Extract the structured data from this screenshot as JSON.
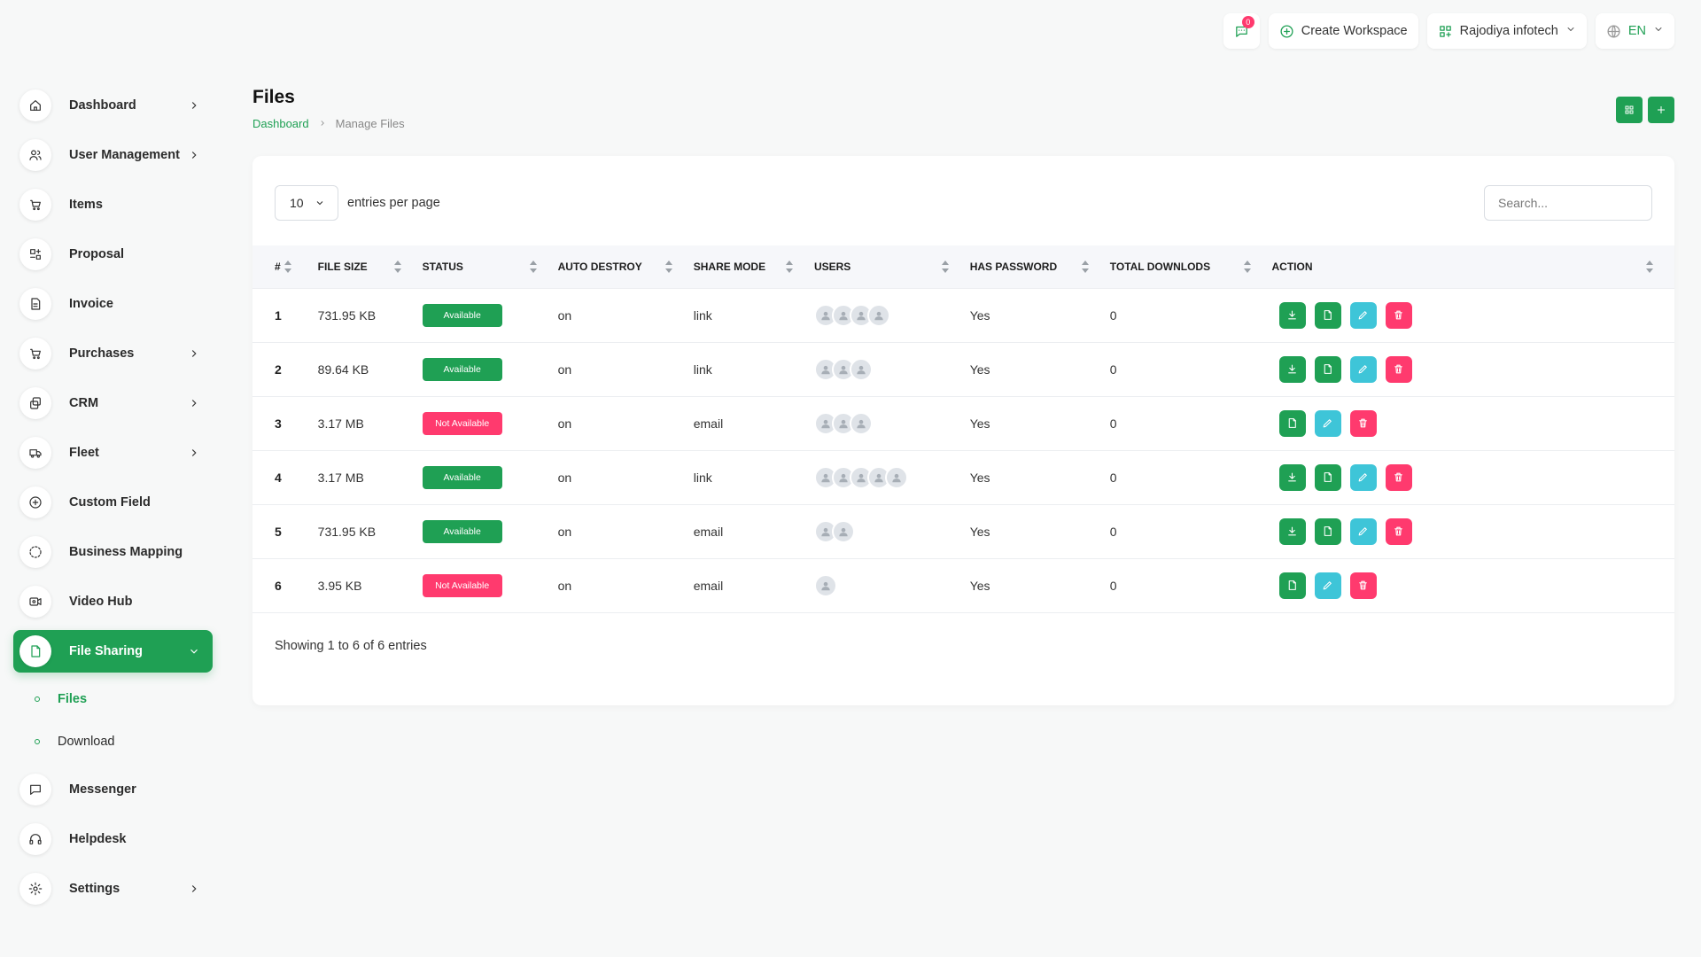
{
  "sidebar": {
    "items": [
      {
        "label": "Dashboard",
        "icon": "home-icon",
        "arrow": true
      },
      {
        "label": "User Management",
        "icon": "users-icon",
        "arrow": true
      },
      {
        "label": "Items",
        "icon": "cart-icon",
        "arrow": false
      },
      {
        "label": "Proposal",
        "icon": "proposal-icon",
        "arrow": false
      },
      {
        "label": "Invoice",
        "icon": "invoice-icon",
        "arrow": false
      },
      {
        "label": "Purchases",
        "icon": "cart-icon",
        "arrow": true
      },
      {
        "label": "CRM",
        "icon": "crm-icon",
        "arrow": true
      },
      {
        "label": "Fleet",
        "icon": "truck-icon",
        "arrow": true
      },
      {
        "label": "Custom Field",
        "icon": "plus-circle-icon",
        "arrow": false
      },
      {
        "label": "Business Mapping",
        "icon": "circle-dashed-icon",
        "arrow": false
      },
      {
        "label": "Video Hub",
        "icon": "video-icon",
        "arrow": false
      },
      {
        "label": "File Sharing",
        "icon": "file-icon",
        "arrow": true,
        "active": true
      },
      {
        "label": "Messenger",
        "icon": "message-icon",
        "arrow": false
      },
      {
        "label": "Helpdesk",
        "icon": "headset-icon",
        "arrow": false
      },
      {
        "label": "Settings",
        "icon": "gear-icon",
        "arrow": true
      }
    ],
    "sub_items": [
      {
        "label": "Files",
        "active": true
      },
      {
        "label": "Download",
        "active": false
      }
    ]
  },
  "topbar": {
    "notification_count": "0",
    "create_workspace": "Create Workspace",
    "workspace_name": "Rajodiya infotech",
    "language": "EN"
  },
  "page": {
    "title": "Files",
    "breadcrumb_home": "Dashboard",
    "breadcrumb_current": "Manage Files"
  },
  "table": {
    "per_page": "10",
    "per_page_label": "entries per page",
    "search_placeholder": "Search...",
    "columns": [
      "#",
      "FILE SIZE",
      "STATUS",
      "AUTO DESTROY",
      "SHARE MODE",
      "USERS",
      "HAS PASSWORD",
      "TOTAL DOWNLODS",
      "ACTION"
    ],
    "rows": [
      {
        "idx": "1",
        "size": "731.95 KB",
        "status": "Available",
        "ok": true,
        "auto_destroy": "on",
        "share_mode": "link",
        "users": 4,
        "has_password": "Yes",
        "downloads": "0",
        "download_btn": true
      },
      {
        "idx": "2",
        "size": "89.64 KB",
        "status": "Available",
        "ok": true,
        "auto_destroy": "on",
        "share_mode": "link",
        "users": 3,
        "has_password": "Yes",
        "downloads": "0",
        "download_btn": true
      },
      {
        "idx": "3",
        "size": "3.17 MB",
        "status": "Not Available",
        "ok": false,
        "auto_destroy": "on",
        "share_mode": "email",
        "users": 3,
        "has_password": "Yes",
        "downloads": "0",
        "download_btn": false
      },
      {
        "idx": "4",
        "size": "3.17 MB",
        "status": "Available",
        "ok": true,
        "auto_destroy": "on",
        "share_mode": "link",
        "users": 5,
        "has_password": "Yes",
        "downloads": "0",
        "download_btn": true
      },
      {
        "idx": "5",
        "size": "731.95 KB",
        "status": "Available",
        "ok": true,
        "auto_destroy": "on",
        "share_mode": "email",
        "users": 2,
        "has_password": "Yes",
        "downloads": "0",
        "download_btn": true
      },
      {
        "idx": "6",
        "size": "3.95 KB",
        "status": "Not Available",
        "ok": false,
        "auto_destroy": "on",
        "share_mode": "email",
        "users": 1,
        "has_password": "Yes",
        "downloads": "0",
        "download_btn": false
      }
    ],
    "footer": "Showing 1 to 6 of 6 entries"
  },
  "colors": {
    "accent": "#1fa054",
    "danger": "#ff3a6e",
    "info": "#3ec5d8"
  }
}
